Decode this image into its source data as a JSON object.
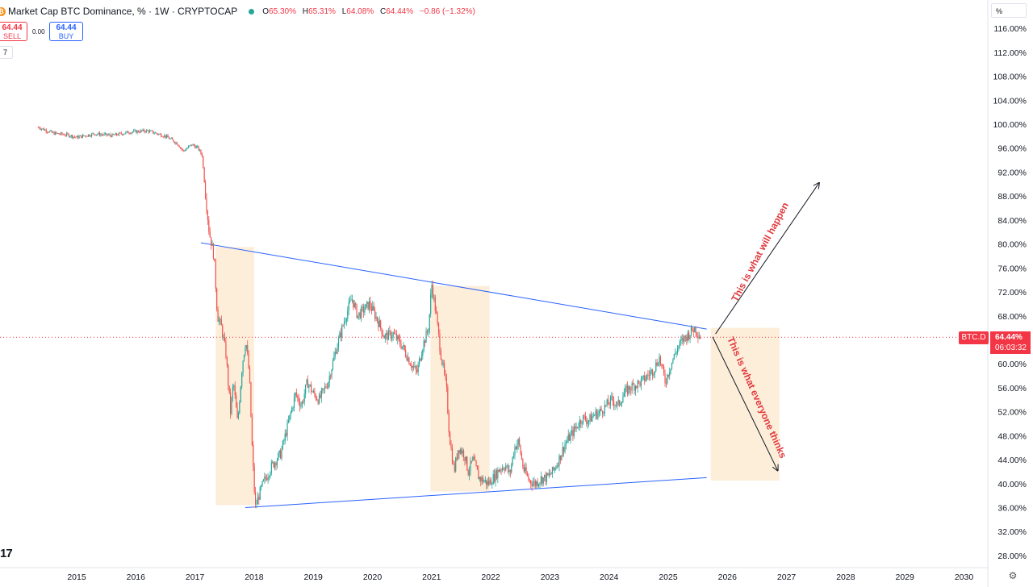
{
  "header": {
    "coin_icon": "bitcoin-icon",
    "coin_glyph": "₿",
    "title": "Market Cap BTC Dominance, % · 1W · CRYPTOCAP",
    "status_color": "#26a69a",
    "ohlc": {
      "o_label": "O",
      "o": "65.30%",
      "h_label": "H",
      "h": "65.31%",
      "l_label": "L",
      "l": "64.08%",
      "c_label": "C",
      "c": "64.44%",
      "change": "−0.86 (−1.32%)"
    }
  },
  "trade": {
    "sell_price": "64.44",
    "sell_label": "SELL",
    "spread": "0.00",
    "buy_price": "64.44",
    "buy_label": "BUY"
  },
  "indicator_badge": "7",
  "scale_mode": "%",
  "symbol_tag": "BTC.D",
  "last_price": "64.44%",
  "countdown": "06:03:32",
  "annotations": {
    "up": "This is what will happen",
    "down": "This is what everyone thinks"
  },
  "colors": {
    "up": "#26a69a",
    "down": "#ef5350",
    "trendline": "#2962ff",
    "highlight": "#fdebd3",
    "price_line": "#f23645",
    "annotation_text": "#e03a3e"
  },
  "chart_data": {
    "type": "candlestick",
    "symbol": "BTC.D",
    "interval": "1W",
    "unit": "%",
    "x_ticks": [
      "2015",
      "2016",
      "2017",
      "2018",
      "2019",
      "2020",
      "2021",
      "2022",
      "2023",
      "2024",
      "2025",
      "2026",
      "2027",
      "2028",
      "2029",
      "2030"
    ],
    "y_ticks": [
      "116.00%",
      "112.00%",
      "108.00%",
      "104.00%",
      "100.00%",
      "96.00%",
      "92.00%",
      "88.00%",
      "84.00%",
      "80.00%",
      "76.00%",
      "72.00%",
      "68.00%",
      "60.00%",
      "56.00%",
      "52.00%",
      "48.00%",
      "44.00%",
      "40.00%",
      "36.00%",
      "32.00%",
      "28.00%"
    ],
    "ylim": [
      26,
      118
    ],
    "xlim": [
      2014.5,
      2030.4
    ],
    "price_path": [
      [
        2014.35,
        99.5
      ],
      [
        2014.6,
        98.5
      ],
      [
        2014.85,
        98.2
      ],
      [
        2015.0,
        97.8
      ],
      [
        2015.3,
        98.4
      ],
      [
        2015.6,
        98.1
      ],
      [
        2015.9,
        98.7
      ],
      [
        2016.2,
        98.9
      ],
      [
        2016.5,
        98.0
      ],
      [
        2016.7,
        96.8
      ],
      [
        2016.8,
        95.5
      ],
      [
        2016.95,
        96.6
      ],
      [
        2017.05,
        96.0
      ],
      [
        2017.12,
        94.8
      ],
      [
        2017.18,
        88.0
      ],
      [
        2017.24,
        82.0
      ],
      [
        2017.32,
        78.0
      ],
      [
        2017.38,
        68.0
      ],
      [
        2017.45,
        66.0
      ],
      [
        2017.52,
        62.0
      ],
      [
        2017.6,
        52.0
      ],
      [
        2017.65,
        57.0
      ],
      [
        2017.72,
        50.0
      ],
      [
        2017.8,
        60.0
      ],
      [
        2017.86,
        64.0
      ],
      [
        2017.92,
        58.0
      ],
      [
        2017.97,
        45.0
      ],
      [
        2018.02,
        36.0
      ],
      [
        2018.08,
        38.0
      ],
      [
        2018.15,
        40.0
      ],
      [
        2018.3,
        43.0
      ],
      [
        2018.45,
        45.0
      ],
      [
        2018.6,
        51.0
      ],
      [
        2018.7,
        55.0
      ],
      [
        2018.8,
        53.0
      ],
      [
        2018.9,
        57.0
      ],
      [
        2019.0,
        55.0
      ],
      [
        2019.1,
        54.0
      ],
      [
        2019.25,
        57.0
      ],
      [
        2019.4,
        63.0
      ],
      [
        2019.55,
        68.0
      ],
      [
        2019.65,
        71.0
      ],
      [
        2019.75,
        68.0
      ],
      [
        2019.85,
        69.0
      ],
      [
        2019.95,
        70.0
      ],
      [
        2020.1,
        67.0
      ],
      [
        2020.2,
        64.5
      ],
      [
        2020.35,
        65.0
      ],
      [
        2020.5,
        63.0
      ],
      [
        2020.65,
        60.0
      ],
      [
        2020.75,
        58.5
      ],
      [
        2020.85,
        63.0
      ],
      [
        2020.95,
        66.0
      ],
      [
        2021.0,
        73.5
      ],
      [
        2021.08,
        68.0
      ],
      [
        2021.15,
        62.0
      ],
      [
        2021.25,
        56.0
      ],
      [
        2021.3,
        48.0
      ],
      [
        2021.38,
        42.0
      ],
      [
        2021.45,
        46.0
      ],
      [
        2021.55,
        45.0
      ],
      [
        2021.62,
        42.0
      ],
      [
        2021.7,
        44.0
      ],
      [
        2021.8,
        41.0
      ],
      [
        2021.88,
        40.5
      ],
      [
        2021.95,
        40.0
      ],
      [
        2022.05,
        41.0
      ],
      [
        2022.15,
        42.5
      ],
      [
        2022.25,
        43.0
      ],
      [
        2022.32,
        41.5
      ],
      [
        2022.4,
        46.0
      ],
      [
        2022.47,
        47.0
      ],
      [
        2022.55,
        42.5
      ],
      [
        2022.65,
        40.5
      ],
      [
        2022.75,
        40.0
      ],
      [
        2022.85,
        40.8
      ],
      [
        2022.95,
        41.0
      ],
      [
        2023.05,
        42.0
      ],
      [
        2023.15,
        44.0
      ],
      [
        2023.25,
        46.5
      ],
      [
        2023.35,
        48.0
      ],
      [
        2023.45,
        49.5
      ],
      [
        2023.55,
        51.0
      ],
      [
        2023.65,
        50.5
      ],
      [
        2023.75,
        51.5
      ],
      [
        2023.85,
        52.0
      ],
      [
        2023.95,
        53.0
      ],
      [
        2024.05,
        54.0
      ],
      [
        2024.15,
        53.0
      ],
      [
        2024.25,
        55.0
      ],
      [
        2024.35,
        56.0
      ],
      [
        2024.45,
        56.5
      ],
      [
        2024.55,
        57.0
      ],
      [
        2024.65,
        58.0
      ],
      [
        2024.75,
        59.0
      ],
      [
        2024.85,
        61.0
      ],
      [
        2024.95,
        57.0
      ],
      [
        2025.05,
        60.0
      ],
      [
        2025.15,
        62.5
      ],
      [
        2025.25,
        64.0
      ],
      [
        2025.35,
        65.0
      ],
      [
        2025.45,
        66.0
      ],
      [
        2025.55,
        64.44
      ]
    ],
    "last_value": 64.44,
    "trendlines": [
      {
        "from": [
          2017.1,
          80.2
        ],
        "to": [
          2025.65,
          65.8
        ]
      },
      {
        "from": [
          2017.85,
          36.0
        ],
        "to": [
          2025.65,
          41.0
        ]
      }
    ],
    "highlight_zones": [
      {
        "x": [
          2017.35,
          2018.0
        ],
        "y": [
          79.5,
          36.4
        ]
      },
      {
        "x": [
          2020.98,
          2021.98
        ],
        "y": [
          73.0,
          38.7
        ]
      },
      {
        "x": [
          2025.72,
          2026.88
        ],
        "y": [
          66.0,
          40.5
        ]
      }
    ],
    "arrows": [
      {
        "from": [
          2025.8,
          65.0
        ],
        "to": [
          2027.55,
          90.2
        ]
      },
      {
        "from": [
          2025.75,
          64.5
        ],
        "to": [
          2026.85,
          42.2
        ]
      }
    ],
    "grid": false,
    "legend": "none"
  }
}
